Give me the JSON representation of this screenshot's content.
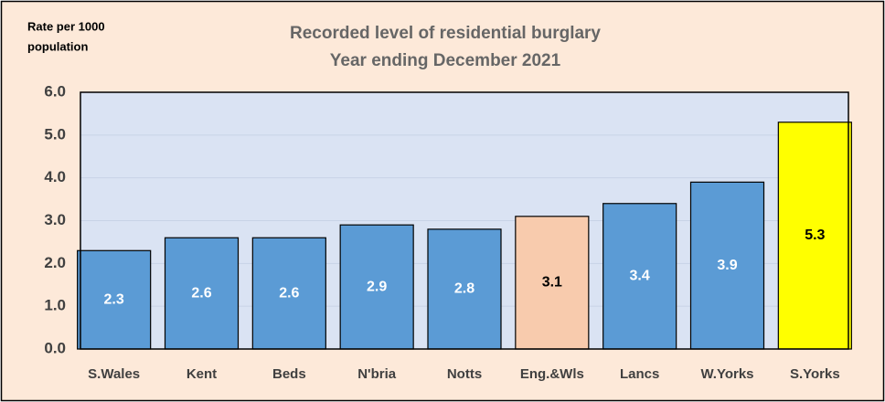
{
  "chart_data": {
    "type": "bar",
    "title": [
      "Recorded level of residential burglary",
      "Year ending December 2021"
    ],
    "ylabel": [
      "Rate per 1000",
      "population"
    ],
    "categories": [
      "S.Wales",
      "Kent",
      "Beds",
      "N'bria",
      "Notts",
      "Eng.&Wls",
      "Lancs",
      "W.Yorks",
      "S.Yorks"
    ],
    "values": [
      2.3,
      2.6,
      2.6,
      2.9,
      2.8,
      3.1,
      3.4,
      3.9,
      5.3
    ],
    "colors": [
      "#5b9bd5",
      "#5b9bd5",
      "#5b9bd5",
      "#5b9bd5",
      "#5b9bd5",
      "#f8cbad",
      "#5b9bd5",
      "#5b9bd5",
      "#ffff00"
    ],
    "label_colors": [
      "#ffffff",
      "#ffffff",
      "#ffffff",
      "#ffffff",
      "#ffffff",
      "#000000",
      "#ffffff",
      "#ffffff",
      "#000000"
    ],
    "ylim": [
      0,
      6
    ],
    "yticks": [
      {
        "value": 0,
        "label": "0.0"
      },
      {
        "value": 1,
        "label": "1.0"
      },
      {
        "value": 2,
        "label": "2.0"
      },
      {
        "value": 3,
        "label": "3.0"
      },
      {
        "value": 4,
        "label": "4.0"
      },
      {
        "value": 5,
        "label": "5.0"
      },
      {
        "value": 6,
        "label": "6.0"
      }
    ],
    "grid": true
  }
}
